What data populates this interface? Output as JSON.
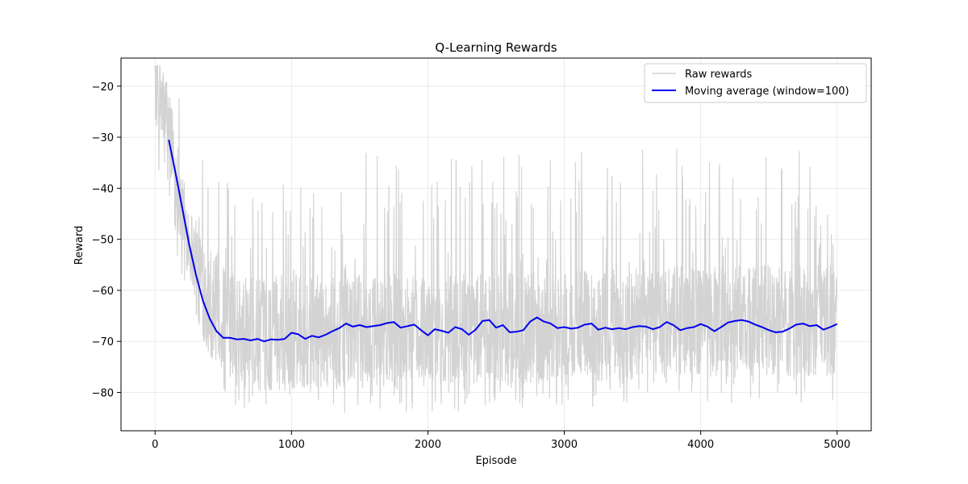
{
  "chart_data": {
    "type": "line",
    "title": "Q-Learning Rewards",
    "xlabel": "Episode",
    "ylabel": "Reward",
    "xlim": [
      -250,
      5250
    ],
    "ylim": [
      -87.5,
      -14.5
    ],
    "x_ticks": [
      0,
      1000,
      2000,
      3000,
      4000,
      5000
    ],
    "y_ticks": [
      -20,
      -30,
      -40,
      -50,
      -60,
      -70,
      -80
    ],
    "x_tick_labels": [
      "0",
      "1000",
      "2000",
      "3000",
      "4000",
      "5000"
    ],
    "y_tick_labels": [
      "−20",
      "−30",
      "−40",
      "−50",
      "−60",
      "−70",
      "−80"
    ],
    "grid": true,
    "legend_position": "top-right",
    "series": [
      {
        "name": "Raw rewards",
        "color": "#d3d3d3",
        "episodes": 5000,
        "smooth_points": [
          [
            0,
            -20
          ],
          [
            100,
            -27
          ],
          [
            200,
            -45
          ],
          [
            300,
            -55
          ],
          [
            400,
            -62
          ],
          [
            500,
            -66
          ],
          [
            600,
            -68
          ],
          [
            800,
            -69
          ],
          [
            1200,
            -68
          ],
          [
            2000,
            -68
          ],
          [
            3000,
            -67
          ],
          [
            4000,
            -66
          ],
          [
            5000,
            -66
          ]
        ],
        "range_min": -84,
        "range_max": -16
      },
      {
        "name": "Moving average (window=100)",
        "color": "#0000ee",
        "x": [
          100,
          150,
          200,
          250,
          300,
          350,
          400,
          450,
          500,
          550,
          600,
          650,
          700,
          750,
          800,
          850,
          900,
          950,
          1000,
          1050,
          1100,
          1150,
          1200,
          1250,
          1300,
          1350,
          1400,
          1450,
          1500,
          1550,
          1600,
          1650,
          1700,
          1750,
          1800,
          1850,
          1900,
          1950,
          2000,
          2050,
          2100,
          2150,
          2200,
          2250,
          2300,
          2350,
          2400,
          2450,
          2500,
          2550,
          2600,
          2650,
          2700,
          2750,
          2800,
          2850,
          2900,
          2950,
          3000,
          3050,
          3100,
          3150,
          3200,
          3250,
          3300,
          3350,
          3400,
          3450,
          3500,
          3550,
          3600,
          3650,
          3700,
          3750,
          3800,
          3850,
          3900,
          3950,
          4000,
          4050,
          4100,
          4150,
          4200,
          4250,
          4300,
          4350,
          4400,
          4450,
          4500,
          4550,
          4600,
          4650,
          4700,
          4750,
          4800,
          4850,
          4900,
          4950,
          5000
        ],
        "values": [
          -30.5,
          -37,
          -44,
          -51,
          -57,
          -62,
          -65.5,
          -68,
          -69.3,
          -69.3,
          -69.6,
          -69.5,
          -69.8,
          -69.5,
          -70,
          -69.6,
          -69.7,
          -69.5,
          -68.3,
          -68.6,
          -69.5,
          -68.9,
          -69.2,
          -68.7,
          -68,
          -67.4,
          -66.5,
          -67.1,
          -66.8,
          -67.2,
          -67,
          -66.8,
          -66.4,
          -66.2,
          -67.3,
          -67,
          -66.7,
          -67.8,
          -68.8,
          -67.6,
          -67.9,
          -68.3,
          -67.2,
          -67.6,
          -68.7,
          -67.7,
          -66,
          -65.8,
          -67.3,
          -66.8,
          -68.2,
          -68.1,
          -67.8,
          -66.1,
          -65.3,
          -66.1,
          -66.5,
          -67.4,
          -67.2,
          -67.5,
          -67.3,
          -66.7,
          -66.5,
          -67.7,
          -67.3,
          -67.6,
          -67.4,
          -67.6,
          -67.2,
          -67,
          -67.1,
          -67.6,
          -67.2,
          -66.2,
          -66.8,
          -67.8,
          -67.4,
          -67.2,
          -66.6,
          -67.1,
          -68,
          -67.2,
          -66.3,
          -66,
          -65.8,
          -66.1,
          -66.7,
          -67.2,
          -67.8,
          -68.2,
          -68.1,
          -67.5,
          -66.7,
          -66.5,
          -67,
          -66.8,
          -67.7,
          -67.2,
          -66.6
        ]
      }
    ]
  }
}
